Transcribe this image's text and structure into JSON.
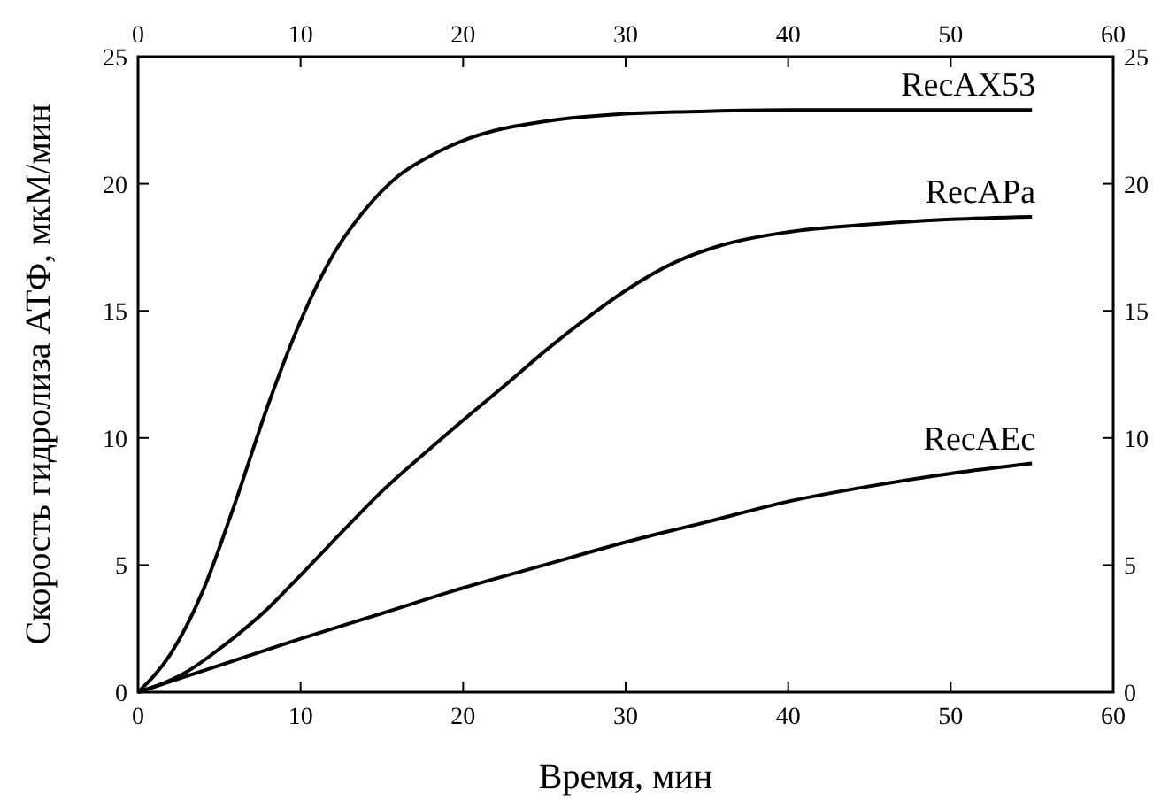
{
  "chart_data": {
    "type": "line",
    "xlabel": "Время, мин",
    "ylabel": "Скорость гидролиза АТФ, мкМ/мин",
    "xlim": [
      0,
      60
    ],
    "xticks": [
      0,
      10,
      20,
      30,
      40,
      50,
      60
    ],
    "ylim": [
      0,
      25
    ],
    "yticks": [
      0,
      5,
      10,
      15,
      20,
      25
    ],
    "x2lim": [
      0,
      60
    ],
    "x2ticks": [
      0,
      10,
      20,
      30,
      40,
      50,
      60
    ],
    "y2lim": [
      0,
      25
    ],
    "y2ticks": [
      0,
      5,
      10,
      15,
      20,
      25
    ],
    "grid": false,
    "marker": "none",
    "line_style": "solid",
    "series": [
      {
        "name": "RecAX53",
        "color": "#000000",
        "x": [
          0,
          2,
          4,
          6,
          8,
          10,
          12,
          14,
          16,
          18,
          20,
          22,
          25,
          30,
          35,
          40,
          45,
          55
        ],
        "values": [
          0,
          1.5,
          4,
          7.5,
          11.3,
          14.6,
          17.2,
          19,
          20.3,
          21.1,
          21.7,
          22.1,
          22.45,
          22.75,
          22.85,
          22.9,
          22.9,
          22.9
        ]
      },
      {
        "name": "RecAPa",
        "color": "#000000",
        "x": [
          0,
          3,
          5,
          8,
          10,
          13,
          15,
          18,
          20,
          23,
          25,
          28,
          30,
          33,
          36,
          40,
          45,
          50,
          55
        ],
        "values": [
          0,
          0.8,
          1.7,
          3.3,
          4.6,
          6.6,
          7.9,
          9.6,
          10.7,
          12.3,
          13.4,
          14.9,
          15.8,
          16.9,
          17.6,
          18.1,
          18.4,
          18.6,
          18.7
        ]
      },
      {
        "name": "RecAEc",
        "color": "#000000",
        "x": [
          0,
          5,
          10,
          15,
          20,
          25,
          30,
          35,
          40,
          45,
          50,
          55
        ],
        "values": [
          0,
          1.05,
          2.1,
          3.1,
          4.1,
          5,
          5.9,
          6.7,
          7.5,
          8.1,
          8.6,
          9
        ]
      }
    ]
  }
}
